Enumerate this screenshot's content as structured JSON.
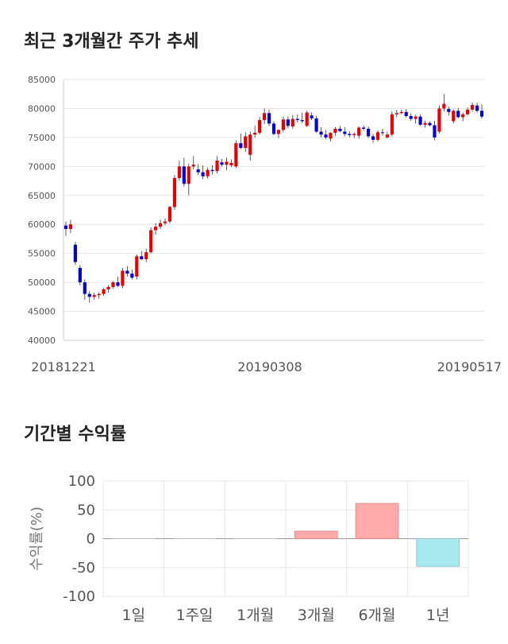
{
  "header": {
    "title1": "최근 3개월간 주가 추세",
    "title2": "기간별 수익률"
  },
  "chart_data": [
    {
      "type": "candlestick",
      "ylim": [
        40000,
        85000
      ],
      "yticks": [
        85000,
        80000,
        75000,
        70000,
        65000,
        60000,
        55000,
        50000,
        45000,
        40000
      ],
      "xticklabels": [
        "20181221",
        "20190308",
        "20190517"
      ],
      "up_color": "#e00000",
      "down_color": "#0000cc",
      "grid": true,
      "candles": [
        [
          59800,
          60500,
          58000,
          59200
        ],
        [
          59200,
          60800,
          58500,
          60000
        ],
        [
          56500,
          57000,
          53000,
          53500
        ],
        [
          52500,
          53000,
          49500,
          50000
        ],
        [
          50000,
          50500,
          47000,
          48000
        ],
        [
          48000,
          48500,
          46500,
          47500
        ],
        [
          47500,
          48200,
          47000,
          47800
        ],
        [
          47800,
          48300,
          47200,
          48000
        ],
        [
          48000,
          49000,
          47700,
          48800
        ],
        [
          48800,
          49500,
          48200,
          49200
        ],
        [
          49200,
          50200,
          48900,
          50000
        ],
        [
          50000,
          51000,
          49200,
          49400
        ],
        [
          49400,
          52500,
          49000,
          52000
        ],
        [
          52000,
          52800,
          51000,
          51500
        ],
        [
          51500,
          52200,
          50500,
          50800
        ],
        [
          51000,
          54800,
          50500,
          54500
        ],
        [
          54500,
          55400,
          53800,
          54000
        ],
        [
          54000,
          55800,
          53500,
          55200
        ],
        [
          55200,
          59500,
          55000,
          59000
        ],
        [
          59000,
          60200,
          58200,
          59600
        ],
        [
          59600,
          60800,
          59200,
          60200
        ],
        [
          60200,
          61000,
          59800,
          60500
        ],
        [
          60500,
          63200,
          60200,
          63000
        ],
        [
          63000,
          68500,
          62500,
          68000
        ],
        [
          68000,
          71000,
          67500,
          70000
        ],
        [
          70000,
          71500,
          66500,
          67000
        ],
        [
          67000,
          70500,
          65000,
          70000
        ],
        [
          70000,
          71800,
          69500,
          70300
        ],
        [
          69500,
          70400,
          68500,
          69000
        ],
        [
          69000,
          70200,
          67800,
          68300
        ],
        [
          68300,
          69800,
          67900,
          69400
        ],
        [
          69400,
          70200,
          68600,
          69200
        ],
        [
          69200,
          71800,
          68800,
          71000
        ],
        [
          70700,
          71300,
          70000,
          70300
        ],
        [
          70300,
          71500,
          69300,
          70800
        ],
        [
          70200,
          71200,
          69900,
          70600
        ],
        [
          70000,
          74500,
          69700,
          74000
        ],
        [
          74000,
          75700,
          73000,
          73200
        ],
        [
          73200,
          75900,
          72500,
          75200
        ],
        [
          72000,
          76000,
          71000,
          75500
        ],
        [
          75500,
          77000,
          75000,
          75800
        ],
        [
          75800,
          78500,
          75500,
          78000
        ],
        [
          78000,
          80000,
          77300,
          79200
        ],
        [
          79200,
          79800,
          77000,
          77400
        ],
        [
          77400,
          77800,
          75400,
          75600
        ],
        [
          75600,
          76400,
          74900,
          76300
        ],
        [
          76300,
          78600,
          75900,
          78100
        ],
        [
          78100,
          78600,
          76600,
          77000
        ],
        [
          76900,
          78900,
          76500,
          78200
        ],
        [
          78200,
          79000,
          77600,
          78000
        ],
        [
          78000,
          79300,
          77400,
          77800
        ],
        [
          77000,
          79600,
          76800,
          79300
        ],
        [
          78800,
          79300,
          78000,
          78300
        ],
        [
          78300,
          78700,
          75800,
          76000
        ],
        [
          76000,
          76800,
          75000,
          75500
        ],
        [
          75500,
          76300,
          74700,
          75000
        ],
        [
          74800,
          75900,
          74300,
          75800
        ],
        [
          75800,
          76800,
          75300,
          76500
        ],
        [
          76500,
          77000,
          75900,
          76100
        ],
        [
          76000,
          76800,
          75200,
          75600
        ],
        [
          75600,
          76100,
          75000,
          75400
        ],
        [
          75400,
          75900,
          74900,
          75600
        ],
        [
          75300,
          76900,
          74800,
          76700
        ],
        [
          76700,
          77100,
          76200,
          76500
        ],
        [
          76500,
          76900,
          74900,
          75200
        ],
        [
          75200,
          75600,
          74100,
          74600
        ],
        [
          74600,
          76200,
          74300,
          75900
        ],
        [
          75900,
          76500,
          75300,
          75800
        ],
        [
          75000,
          76000,
          74800,
          75500
        ],
        [
          75500,
          79500,
          75200,
          79000
        ],
        [
          79000,
          79700,
          78500,
          79200
        ],
        [
          79200,
          79800,
          79000,
          79400
        ],
        [
          79400,
          79900,
          78400,
          78700
        ],
        [
          78700,
          79100,
          77900,
          78200
        ],
        [
          78200,
          78900,
          77400,
          78600
        ],
        [
          78600,
          79000,
          77000,
          77200
        ],
        [
          77200,
          77900,
          76700,
          77500
        ],
        [
          77500,
          77800,
          76900,
          77100
        ],
        [
          77100,
          77900,
          74500,
          75000
        ],
        [
          76000,
          80500,
          75700,
          80000
        ],
        [
          80000,
          82500,
          79500,
          80800
        ],
        [
          79900,
          80300,
          78800,
          79400
        ],
        [
          77800,
          79800,
          77400,
          79600
        ],
        [
          79600,
          80100,
          78300,
          78500
        ],
        [
          78500,
          79300,
          77800,
          79000
        ],
        [
          79000,
          80200,
          78800,
          79800
        ],
        [
          79800,
          81000,
          79500,
          80600
        ],
        [
          80500,
          81000,
          79300,
          79600
        ],
        [
          79600,
          80700,
          78300,
          78600
        ]
      ]
    },
    {
      "type": "bar",
      "categories": [
        "1일",
        "1주일",
        "1개월",
        "3개월",
        "6개월",
        "1년"
      ],
      "values": [
        0,
        0,
        0,
        13,
        61,
        -48
      ],
      "ylim": [
        -100,
        100
      ],
      "yticks": [
        100,
        50,
        0,
        -50,
        -100
      ],
      "ylabel": "수익률(%)",
      "positive_color": "#ffaaaa",
      "negative_color": "#aae8f0",
      "grid": true
    }
  ]
}
